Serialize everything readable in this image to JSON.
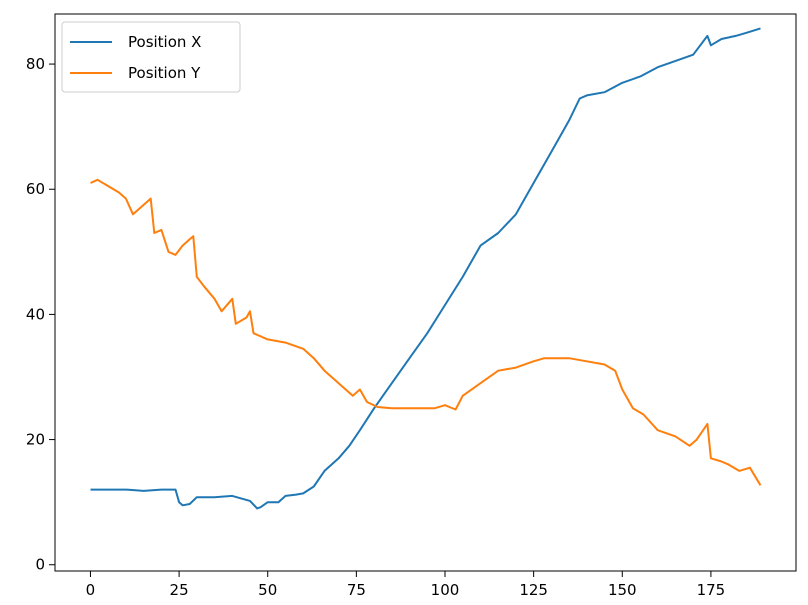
{
  "chart_data": {
    "type": "line",
    "title": "",
    "xlabel": "",
    "ylabel": "",
    "xlim": [
      -10,
      199
    ],
    "ylim": [
      -1,
      88
    ],
    "x_ticks": [
      0,
      25,
      50,
      75,
      100,
      125,
      150,
      175
    ],
    "y_ticks": [
      0,
      20,
      40,
      60,
      80
    ],
    "grid": false,
    "legend_position": "top-left",
    "series": [
      {
        "name": "Position X",
        "color": "#1f77b4",
        "points": [
          [
            0,
            12
          ],
          [
            5,
            12
          ],
          [
            10,
            12
          ],
          [
            15,
            11.8
          ],
          [
            20,
            12
          ],
          [
            24,
            12
          ],
          [
            25,
            10
          ],
          [
            26,
            9.5
          ],
          [
            28,
            9.7
          ],
          [
            30,
            10.8
          ],
          [
            35,
            10.8
          ],
          [
            40,
            11
          ],
          [
            45,
            10.2
          ],
          [
            47,
            9
          ],
          [
            48,
            9.2
          ],
          [
            50,
            10
          ],
          [
            53,
            10
          ],
          [
            55,
            11
          ],
          [
            58,
            11.2
          ],
          [
            60,
            11.4
          ],
          [
            63,
            12.5
          ],
          [
            66,
            15
          ],
          [
            70,
            17
          ],
          [
            73,
            19
          ],
          [
            76,
            21.5
          ],
          [
            80,
            25
          ],
          [
            85,
            29
          ],
          [
            90,
            33
          ],
          [
            95,
            37
          ],
          [
            100,
            41.5
          ],
          [
            105,
            46
          ],
          [
            110,
            51
          ],
          [
            115,
            53
          ],
          [
            120,
            56
          ],
          [
            125,
            61
          ],
          [
            130,
            66
          ],
          [
            135,
            71
          ],
          [
            138,
            74.5
          ],
          [
            140,
            75
          ],
          [
            145,
            75.5
          ],
          [
            150,
            77
          ],
          [
            155,
            78
          ],
          [
            160,
            79.5
          ],
          [
            165,
            80.5
          ],
          [
            170,
            81.5
          ],
          [
            174,
            84.5
          ],
          [
            175,
            83
          ],
          [
            178,
            84
          ],
          [
            182,
            84.5
          ],
          [
            185,
            85
          ],
          [
            189,
            85.7
          ]
        ]
      },
      {
        "name": "Position Y",
        "color": "#ff7f0e",
        "points": [
          [
            0,
            61
          ],
          [
            2,
            61.5
          ],
          [
            5,
            60.5
          ],
          [
            8,
            59.5
          ],
          [
            10,
            58.5
          ],
          [
            12,
            56
          ],
          [
            15,
            57.5
          ],
          [
            17,
            58.5
          ],
          [
            18,
            53
          ],
          [
            20,
            53.5
          ],
          [
            22,
            50
          ],
          [
            24,
            49.5
          ],
          [
            26,
            51
          ],
          [
            28,
            52
          ],
          [
            29,
            52.5
          ],
          [
            30,
            46
          ],
          [
            32,
            44.5
          ],
          [
            35,
            42.5
          ],
          [
            37,
            40.5
          ],
          [
            40,
            42.5
          ],
          [
            41,
            38.5
          ],
          [
            44,
            39.5
          ],
          [
            45,
            40.5
          ],
          [
            46,
            37
          ],
          [
            50,
            36
          ],
          [
            55,
            35.5
          ],
          [
            60,
            34.5
          ],
          [
            63,
            33
          ],
          [
            66,
            31
          ],
          [
            70,
            29
          ],
          [
            74,
            27
          ],
          [
            76,
            28
          ],
          [
            78,
            26
          ],
          [
            81,
            25.2
          ],
          [
            85,
            25
          ],
          [
            90,
            25
          ],
          [
            95,
            25
          ],
          [
            97,
            25
          ],
          [
            100,
            25.5
          ],
          [
            103,
            24.8
          ],
          [
            105,
            27
          ],
          [
            110,
            29
          ],
          [
            115,
            31
          ],
          [
            120,
            31.5
          ],
          [
            125,
            32.5
          ],
          [
            128,
            33
          ],
          [
            130,
            33
          ],
          [
            135,
            33
          ],
          [
            140,
            32.5
          ],
          [
            145,
            32
          ],
          [
            148,
            31
          ],
          [
            150,
            28
          ],
          [
            153,
            25
          ],
          [
            156,
            24
          ],
          [
            160,
            21.5
          ],
          [
            165,
            20.5
          ],
          [
            169,
            19
          ],
          [
            171,
            20
          ],
          [
            174,
            22.5
          ],
          [
            175,
            17
          ],
          [
            178,
            16.5
          ],
          [
            180,
            16
          ],
          [
            183,
            15
          ],
          [
            186,
            15.5
          ],
          [
            189,
            12.7
          ]
        ]
      }
    ]
  }
}
